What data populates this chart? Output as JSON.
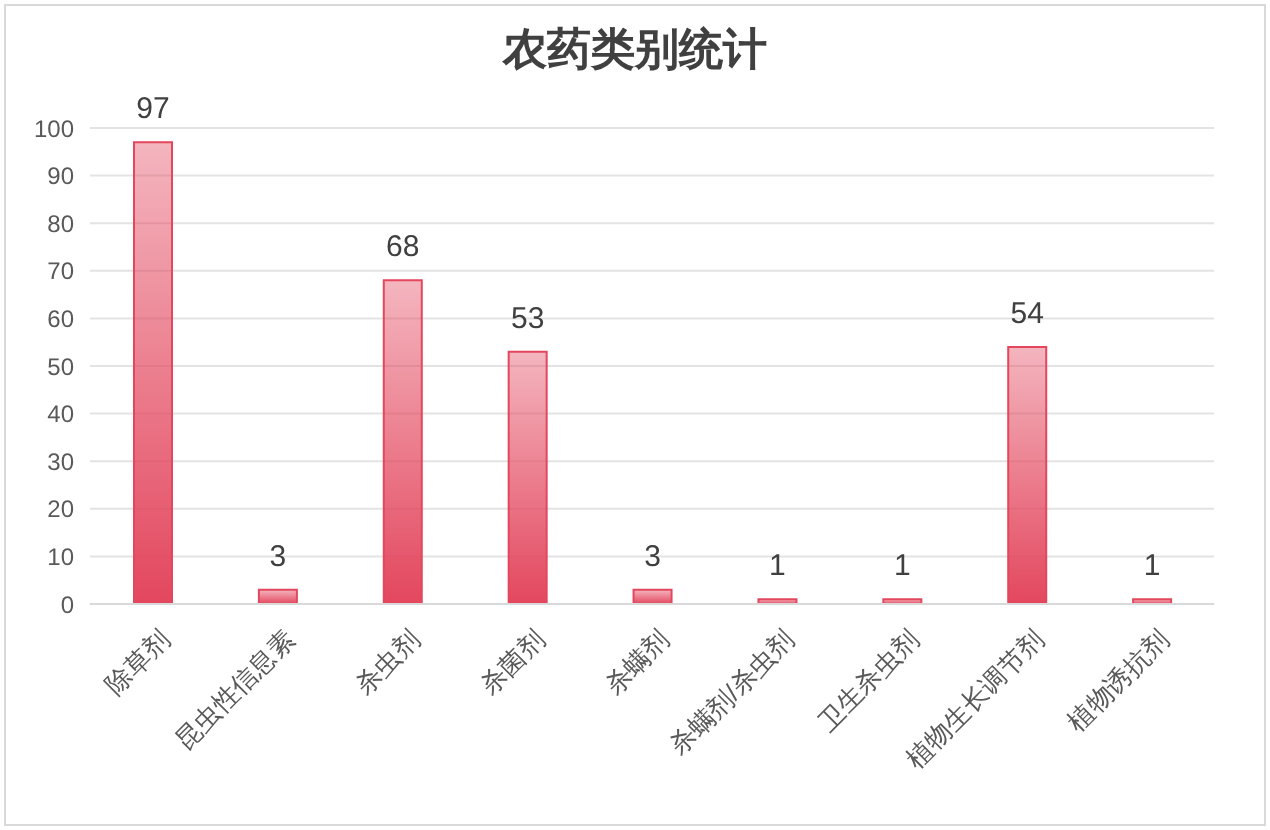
{
  "chart_data": {
    "type": "bar",
    "title": "农药类别统计",
    "categories": [
      "除草剂",
      "昆虫性信息素",
      "杀虫剂",
      "杀菌剂",
      "杀螨剂",
      "杀螨剂/杀虫剂",
      "卫生杀虫剂",
      "植物生长调节剂",
      "植物诱抗剂"
    ],
    "values": [
      97,
      3,
      68,
      53,
      3,
      1,
      1,
      54,
      1
    ],
    "color": "#e3475e",
    "ylim": [
      0,
      100
    ],
    "yticks": [
      0,
      10,
      20,
      30,
      40,
      50,
      60,
      70,
      80,
      90,
      100
    ],
    "grid": "y",
    "data_labels": true
  }
}
